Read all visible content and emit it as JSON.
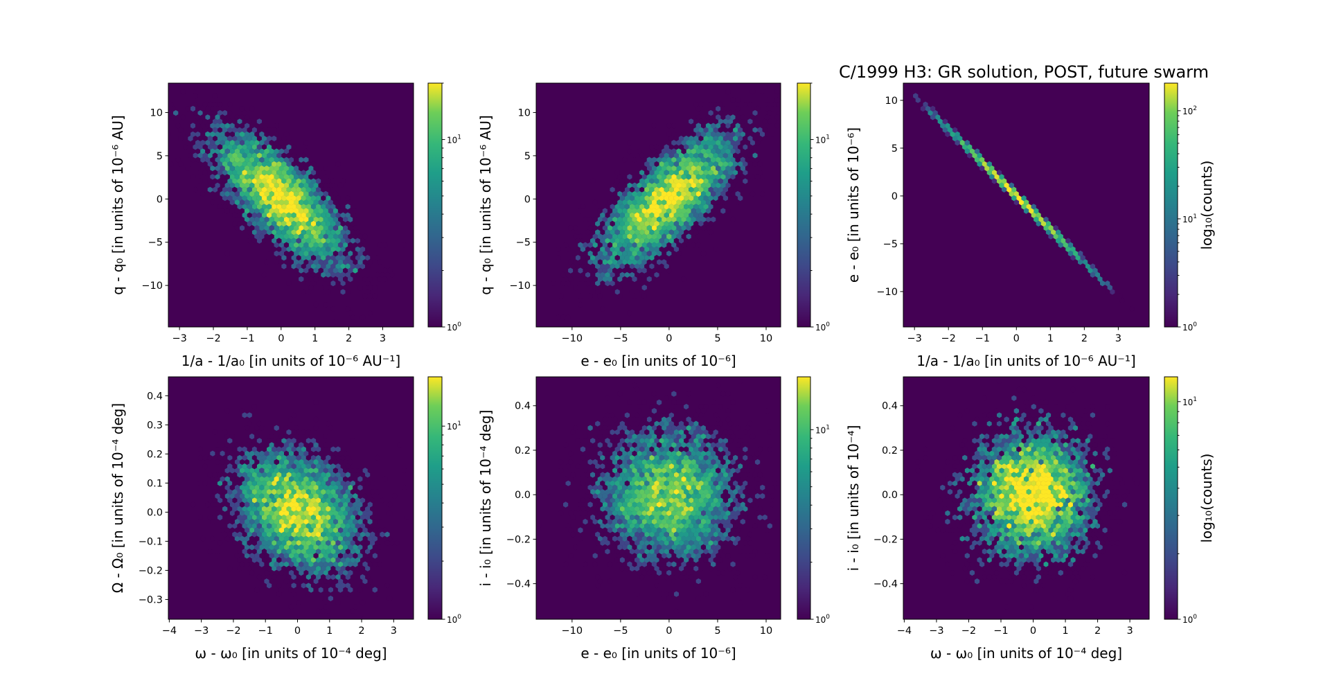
{
  "title": "C/1999 H3: GR solution, POST, future swarm",
  "colormap": "viridis",
  "chart_data": [
    {
      "type": "heatmap",
      "subtype": "hexbin",
      "xlabel": "1/a - 1/a₀ [in units of 10⁻⁶ AU⁻¹]",
      "ylabel": "q - q₀ [in units of 10⁻⁶ AU]",
      "xlim": [
        -3.33,
        3.91
      ],
      "ylim": [
        -14.8,
        13.4
      ],
      "xticks": [
        -3,
        -2,
        -1,
        0,
        1,
        2,
        3
      ],
      "yticks": [
        -10,
        -5,
        0,
        5,
        10
      ],
      "colorbar": {
        "scale": "log",
        "range": [
          1,
          20
        ],
        "ticks": [
          1,
          10
        ],
        "label": ""
      },
      "distribution": {
        "kind": "bivariate-normal",
        "n": 5000,
        "mean": [
          0,
          0
        ],
        "std": [
          1.0,
          4.0
        ],
        "rho": -0.75
      }
    },
    {
      "type": "heatmap",
      "subtype": "hexbin",
      "xlabel": "e - e₀ [in units of 10⁻⁶]",
      "ylabel": "q - q₀ [in units of 10⁻⁶ AU]",
      "xlim": [
        -13.7,
        11.5
      ],
      "ylim": [
        -14.8,
        13.4
      ],
      "xticks": [
        -10,
        -5,
        0,
        5,
        10
      ],
      "yticks": [
        -10,
        -5,
        0,
        5,
        10
      ],
      "colorbar": {
        "scale": "log",
        "range": [
          1,
          20
        ],
        "ticks": [
          1,
          10
        ],
        "label": ""
      },
      "distribution": {
        "kind": "bivariate-normal",
        "n": 5000,
        "mean": [
          0,
          0
        ],
        "std": [
          3.6,
          4.0
        ],
        "rho": 0.75
      }
    },
    {
      "type": "heatmap",
      "subtype": "hexbin",
      "xlabel": "1/a - 1/a₀ [in units of 10⁻⁶ AU⁻¹]",
      "ylabel": "e - e₀ [in units of 10⁻⁶]",
      "xlim": [
        -3.33,
        3.91
      ],
      "ylim": [
        -13.7,
        11.8
      ],
      "xticks": [
        -3,
        -2,
        -1,
        0,
        1,
        2,
        3
      ],
      "yticks": [
        -10,
        -5,
        0,
        5,
        10
      ],
      "colorbar": {
        "scale": "log",
        "range": [
          1,
          180
        ],
        "ticks": [
          1,
          10,
          100
        ],
        "label": "log₁₀(counts)"
      },
      "distribution": {
        "kind": "bivariate-normal",
        "n": 5000,
        "mean": [
          0,
          0
        ],
        "std": [
          1.0,
          3.5
        ],
        "rho": -0.999
      }
    },
    {
      "type": "heatmap",
      "subtype": "hexbin",
      "xlabel": "ω - ω₀ [in units of 10⁻⁴ deg]",
      "ylabel": "Ω - Ω₀ [in units of 10⁻⁴ deg]",
      "xlim": [
        -4.03,
        3.62
      ],
      "ylim": [
        -0.368,
        0.465
      ],
      "xticks": [
        -4,
        -3,
        -2,
        -1,
        0,
        1,
        2,
        3
      ],
      "yticks": [
        -0.3,
        -0.2,
        -0.1,
        0.0,
        0.1,
        0.2,
        0.3,
        0.4
      ],
      "colorbar": {
        "scale": "log",
        "range": [
          1,
          18
        ],
        "ticks": [
          1,
          10
        ],
        "label": ""
      },
      "distribution": {
        "kind": "bivariate-normal",
        "n": 5000,
        "mean": [
          0,
          0
        ],
        "std": [
          1.0,
          0.11
        ],
        "rho": -0.3
      }
    },
    {
      "type": "heatmap",
      "subtype": "hexbin",
      "xlabel": "e - e₀ [in units of 10⁻⁶]",
      "ylabel": "i - i₀ [in units of 10⁻⁴ deg]",
      "xlim": [
        -13.7,
        11.5
      ],
      "ylim": [
        -0.56,
        0.53
      ],
      "xticks": [
        -10,
        -5,
        0,
        5,
        10
      ],
      "yticks": [
        -0.4,
        -0.2,
        0.0,
        0.2,
        0.4
      ],
      "colorbar": {
        "scale": "log",
        "range": [
          1,
          19
        ],
        "ticks": [
          1,
          10
        ],
        "label": ""
      },
      "distribution": {
        "kind": "bivariate-normal",
        "n": 5000,
        "mean": [
          0,
          0
        ],
        "std": [
          3.6,
          0.15
        ],
        "rho": 0.0
      }
    },
    {
      "type": "heatmap",
      "subtype": "hexbin",
      "xlabel": "ω - ω₀ [in units of 10⁻⁴ deg]",
      "ylabel": "i - i₀ [in units of 10⁻⁴]",
      "xlim": [
        -4.03,
        3.6
      ],
      "ylim": [
        -0.56,
        0.53
      ],
      "xticks": [
        -4,
        -3,
        -2,
        -1,
        0,
        1,
        2,
        3
      ],
      "yticks": [
        -0.4,
        -0.2,
        0.0,
        0.2,
        0.4
      ],
      "colorbar": {
        "scale": "log",
        "range": [
          1,
          13
        ],
        "ticks": [
          1,
          10
        ],
        "label": "log₁₀(counts)"
      },
      "distribution": {
        "kind": "bivariate-normal",
        "n": 5000,
        "mean": [
          0,
          0
        ],
        "std": [
          1.0,
          0.15
        ],
        "rho": 0.0
      }
    }
  ]
}
